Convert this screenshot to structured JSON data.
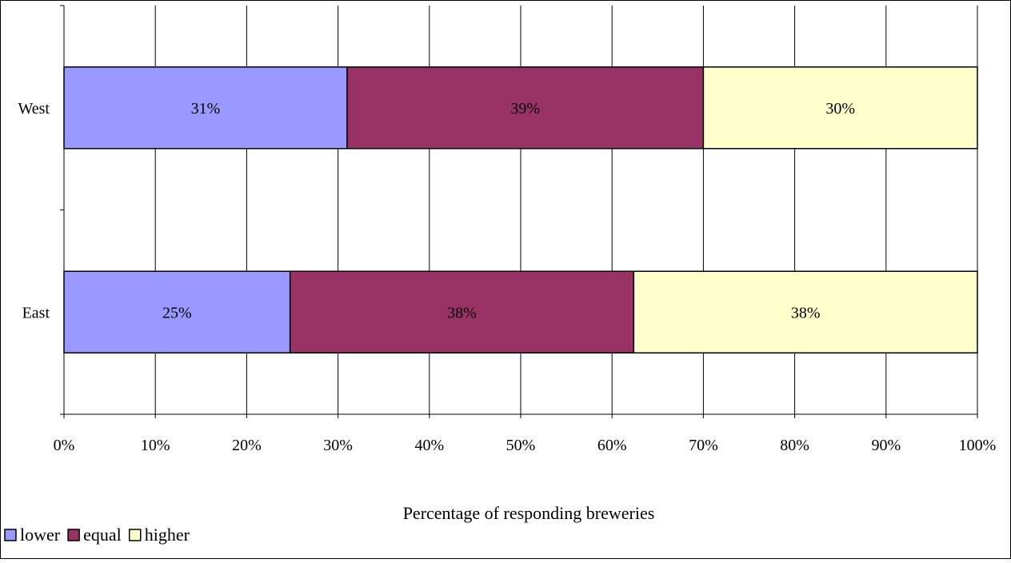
{
  "chart_data": {
    "type": "bar",
    "orientation": "horizontal",
    "stacked": "percent",
    "categories": [
      "West",
      "East"
    ],
    "series": [
      {
        "name": "lower",
        "values": [
          31,
          25
        ],
        "labels": [
          "31%",
          "25%"
        ],
        "color": "#9999ff"
      },
      {
        "name": "equal",
        "values": [
          39,
          38
        ],
        "labels": [
          "39%",
          "38%"
        ],
        "color": "#993366"
      },
      {
        "name": "higher",
        "values": [
          30,
          38
        ],
        "labels": [
          "30%",
          "38%"
        ],
        "color": "#ffffcc"
      }
    ],
    "xlabel": "Percentage of responding breweries",
    "ylabel": "",
    "xlim": [
      0,
      100
    ],
    "x_ticks": [
      "0%",
      "10%",
      "20%",
      "30%",
      "40%",
      "50%",
      "60%",
      "70%",
      "80%",
      "90%",
      "100%"
    ],
    "grid": "vertical",
    "legend_position": "bottom-left"
  }
}
